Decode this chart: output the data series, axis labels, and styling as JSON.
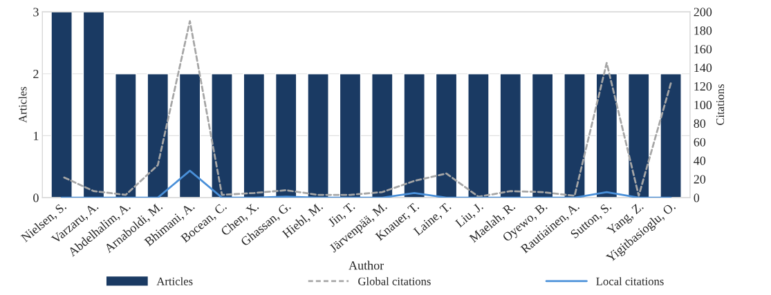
{
  "chart_data": {
    "type": "bar",
    "categories": [
      "Nielsen, S.",
      "Varzaru, A.",
      "Abdelhalim, A.",
      "Arnaboldi, M.",
      "Bhimani, A.",
      "Bocean, C.",
      "Chen, X.",
      "Ghassan, G.",
      "Hiebl, M.",
      "Jin, T.",
      "Järvenpää, M.",
      "Knauer, T.",
      "Laine, T.",
      "Liu, J.",
      "Maelah, R.",
      "Oyewo, B.",
      "Rautiainen, A.",
      "Sutton, S.",
      "Yang, Z.",
      "Yigitbasioglu, O."
    ],
    "series": [
      {
        "name": "Articles",
        "color": "#1a3a63",
        "values": [
          3,
          3,
          2,
          2,
          2,
          2,
          2,
          2,
          2,
          2,
          2,
          2,
          2,
          2,
          2,
          2,
          2,
          2,
          2,
          2
        ]
      },
      {
        "name": "Global citations",
        "type": "line",
        "axis": "y2",
        "line_style": "dashed",
        "color": "#a6a6a6",
        "values": [
          23,
          7,
          3,
          35,
          190,
          3,
          5,
          8,
          3,
          3,
          6,
          18,
          26,
          1,
          7,
          6,
          2,
          145,
          2,
          123
        ]
      },
      {
        "name": "Local citations",
        "type": "line",
        "axis": "y2",
        "line_style": "solid",
        "color": "#4a90d9",
        "values": [
          0,
          0,
          0,
          0,
          29,
          0,
          0,
          1,
          0,
          0,
          0,
          5,
          0,
          0,
          0,
          0,
          0,
          6,
          0,
          0
        ]
      }
    ],
    "xlabel": "Author",
    "ylabel": "Articles",
    "y2label": "Citations",
    "ylim": [
      0,
      3
    ],
    "yticks": [
      0,
      1,
      2,
      3
    ],
    "y2lim": [
      0,
      200
    ],
    "y2ticks": [
      0,
      20,
      40,
      60,
      80,
      100,
      120,
      140,
      160,
      180,
      200
    ],
    "grid": "y",
    "legend": "bottom"
  }
}
